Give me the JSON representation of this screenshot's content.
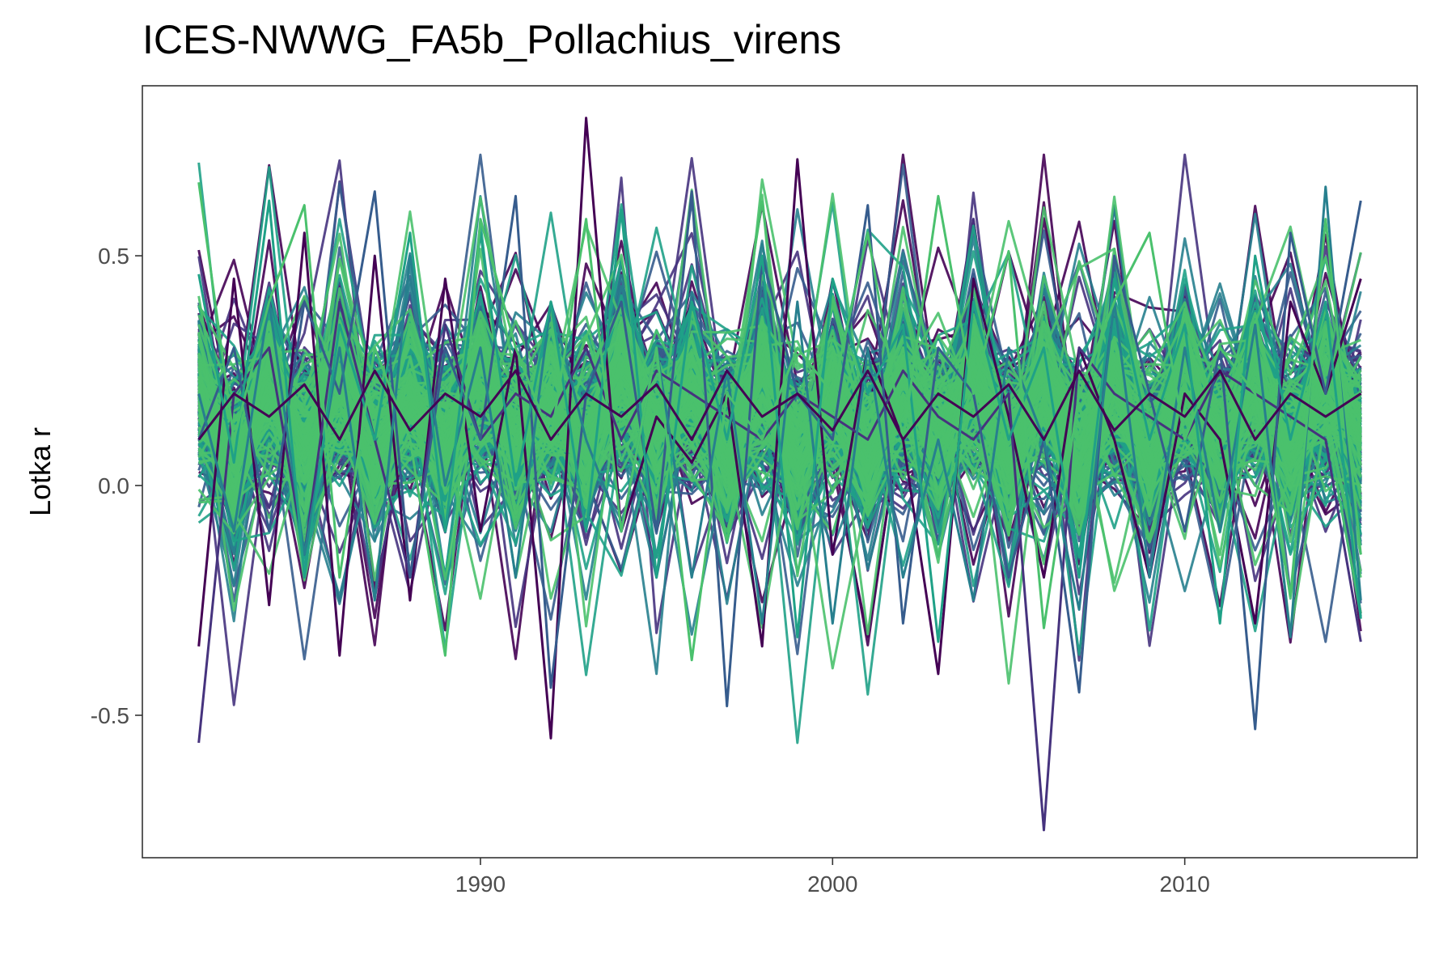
{
  "chart_data": {
    "type": "line",
    "title": "ICES-NWWG_FA5b_Pollachius_virens",
    "xlabel": "",
    "ylabel": "Lotka r",
    "x_range": [
      1982,
      2015
    ],
    "xlim": [
      1980.4,
      2016.6
    ],
    "ylim": [
      -0.81,
      0.87
    ],
    "x_ticks": [
      1990,
      2000,
      2010
    ],
    "x_tick_labels": [
      "1990",
      "2000",
      "2010"
    ],
    "y_ticks": [
      -0.5,
      0.0,
      0.5
    ],
    "y_tick_labels": [
      "-0.5",
      "0.0",
      "0.5"
    ],
    "grid": false,
    "legend": "none",
    "palette": [
      "#440154",
      "#46337e",
      "#365c8d",
      "#277f8e",
      "#1fa187",
      "#4ac16d"
    ],
    "series_count_approx": 500,
    "central_value_approx": 0.15,
    "series": [
      {
        "values": [
          -0.35,
          0.45,
          -0.26,
          0.55,
          -0.37,
          0.5,
          -0.25,
          0.45,
          -0.1,
          0.3,
          -0.55,
          0.8,
          -0.1,
          0.15,
          0.05,
          0.2,
          -0.35,
          0.71,
          -0.15,
          0.3,
          0.1,
          -0.41,
          0.45,
          0.15,
          -0.2,
          0.3,
          0.1,
          -0.2,
          0.2,
          0.1,
          -0.3,
          0.4,
          0.2,
          0.45
        ]
      },
      {
        "values": [
          -0.56,
          0.2,
          0.3,
          -0.15,
          0.4,
          0.1,
          -0.2,
          0.35,
          0.1,
          0.2,
          0.15,
          0.3,
          0.1,
          0.25,
          0.2,
          0.15,
          0.1,
          0.2,
          0.15,
          0.1,
          0.25,
          0.15,
          0.1,
          0.2,
          -0.75,
          0.3,
          0.2,
          0.15,
          0.1,
          0.25,
          0.2,
          0.15,
          0.1,
          -0.34
        ]
      },
      {
        "values": [
          0.1,
          0.3,
          -0.1,
          0.4,
          0.2,
          0.64,
          -0.2,
          0.3,
          0.1,
          0.63,
          -0.44,
          0.2,
          0.4,
          -0.1,
          0.64,
          -0.48,
          0.5,
          0.2,
          0.1,
          0.61,
          -0.3,
          0.3,
          0.2,
          -0.2,
          0.1,
          -0.45,
          0.5,
          0.2,
          -0.1,
          0.3,
          -0.53,
          0.55,
          0.2,
          0.62
        ]
      },
      {
        "values": [
          0.2,
          -0.1,
          0.4,
          -0.15,
          0.3,
          -0.25,
          0.5,
          0.0,
          0.3,
          -0.2,
          0.4,
          0.1,
          -0.1,
          0.3,
          -0.2,
          0.25,
          -0.3,
          0.4,
          -0.3,
          0.3,
          -0.2,
          0.1,
          -0.25,
          0.3,
          0.1,
          -0.27,
          0.4,
          -0.2,
          0.3,
          -0.1,
          0.35,
          -0.33,
          0.65,
          -0.25
        ]
      },
      {
        "values": [
          0.46,
          0.05,
          0.62,
          -0.2,
          0.35,
          0.1,
          0.55,
          -0.1,
          0.55,
          0.0,
          0.4,
          -0.1,
          0.6,
          -0.2,
          0.4,
          0.1,
          0.5,
          -0.33,
          0.45,
          0.2,
          0.35,
          -0.34,
          0.4,
          0.1,
          0.3,
          -0.2,
          0.45,
          0.1,
          0.35,
          -0.3,
          0.5,
          0.1,
          0.4,
          -0.29
        ]
      },
      {
        "values": [
          0.66,
          0.1,
          0.4,
          0.61,
          -0.2,
          0.3,
          0.1,
          -0.37,
          0.58,
          0.3,
          0.1,
          0.58,
          -0.1,
          0.3,
          -0.38,
          0.2,
          0.1,
          0.3,
          0.2,
          0.55,
          0.1,
          0.63,
          0.2,
          0.51,
          -0.31,
          0.2,
          0.4,
          0.55,
          0.1,
          0.3,
          0.2,
          -0.24,
          0.58,
          -0.15
        ]
      },
      {
        "values": [
          0.1,
          0.2,
          0.15,
          0.22,
          0.1,
          0.25,
          0.12,
          0.2,
          0.15,
          0.25,
          0.1,
          0.2,
          0.15,
          0.22,
          0.1,
          0.25,
          0.15,
          0.2,
          0.12,
          0.25,
          0.1,
          0.2,
          0.15,
          0.22,
          0.1,
          0.25,
          0.12,
          0.2,
          0.15,
          0.25,
          0.1,
          0.2,
          0.15,
          0.2
        ]
      }
    ]
  }
}
